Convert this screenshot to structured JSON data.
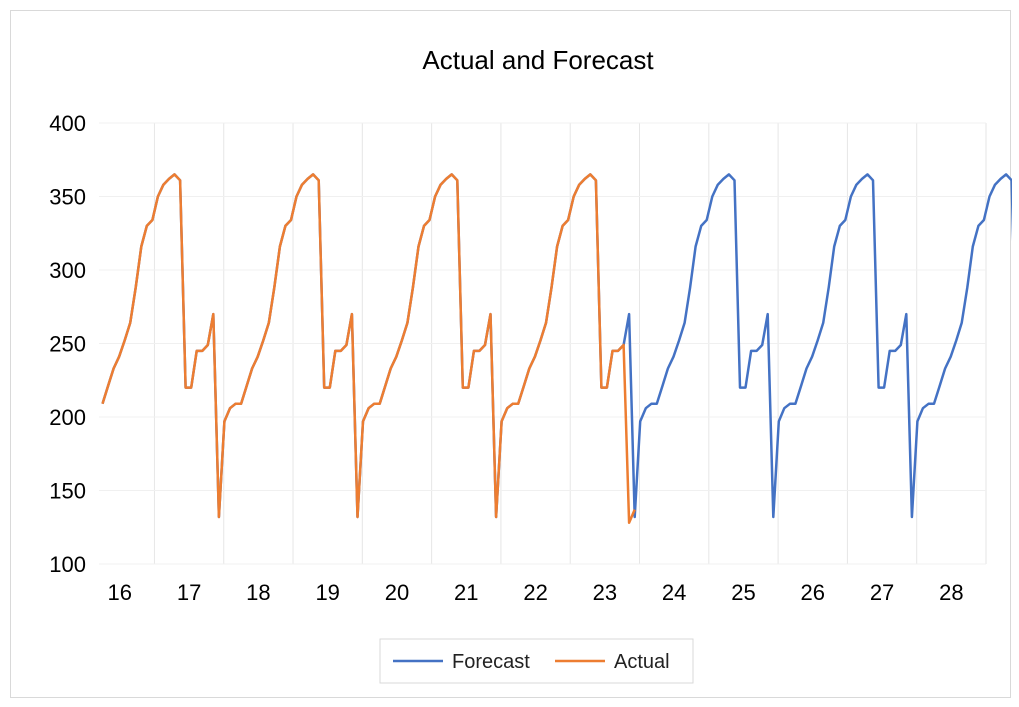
{
  "chart_data": {
    "type": "line",
    "title": "Actual and Forecast",
    "xlabel": "",
    "ylabel": "",
    "ylim": [
      100,
      400
    ],
    "yticks": [
      100,
      150,
      200,
      250,
      300,
      350,
      400
    ],
    "xticks": [
      "16",
      "17",
      "18",
      "19",
      "20",
      "21",
      "22",
      "23",
      "24",
      "25",
      "26",
      "27",
      "28"
    ],
    "xlim": [
      15.7,
      28.5
    ],
    "grid": "vertical major gridlines",
    "legend": "bottom-center",
    "cycle_start": 15.75,
    "cycle_length": 2.0,
    "cycle_profile": [
      209,
      221,
      233,
      241,
      252,
      264,
      288,
      316,
      330,
      334,
      350,
      358,
      362,
      365,
      361,
      220,
      220,
      245,
      245,
      249,
      270,
      132,
      197,
      206,
      209
    ],
    "series": [
      {
        "name": "Forecast",
        "color": "#4472C4",
        "cycles": 6,
        "tail_points": 20
      },
      {
        "name": "Actual",
        "color": "#ED7D31",
        "cycles": 3,
        "tail_points": 20,
        "tail_override": [
          209,
          221,
          233,
          241,
          252,
          264,
          288,
          316,
          330,
          334,
          350,
          358,
          362,
          365,
          361,
          220,
          220,
          245,
          245,
          249,
          128,
          137
        ]
      }
    ]
  }
}
